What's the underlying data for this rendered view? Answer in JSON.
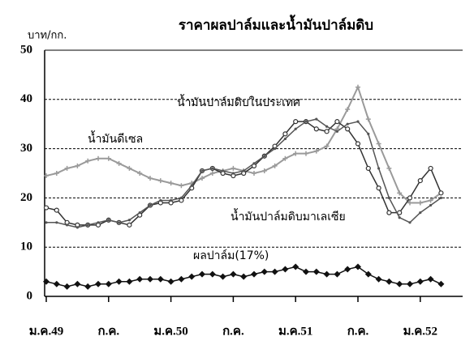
{
  "chart_data": {
    "type": "line",
    "title": "ราคาผลปาล์มและน้ำมันปาล์มดิบ",
    "y_label": "บาท/กก.",
    "categories": [
      "ม.ค.49",
      null,
      null,
      null,
      null,
      null,
      "ก.ค.",
      null,
      null,
      null,
      null,
      null,
      "ม.ค.50",
      null,
      null,
      null,
      null,
      null,
      "ก.ค.",
      null,
      null,
      null,
      null,
      null,
      "ม.ค.51",
      null,
      null,
      null,
      null,
      null,
      "ก.ค.",
      null,
      null,
      null,
      null,
      null,
      "ม.ค.52",
      null,
      null
    ],
    "ylim": [
      0,
      50
    ],
    "yticks": [
      0,
      10,
      20,
      30,
      40,
      50
    ],
    "grid": true,
    "series": [
      {
        "name": "น้ำมันดีเซล",
        "color": "#9a9a9a",
        "values": [
          24.5,
          25,
          26,
          26.5,
          27.5,
          28,
          28,
          27,
          26,
          25,
          24,
          23.5,
          23,
          22.5,
          23,
          24,
          25,
          25.5,
          26,
          25.5,
          25,
          25.5,
          26.5,
          28,
          29,
          29,
          29.5,
          30.5,
          34,
          38,
          42.5,
          36,
          31,
          26,
          21,
          19,
          19,
          19.5,
          21
        ]
      },
      {
        "name": "น้ำมันปาล์มดิบในประเทศ",
        "color": "#333333",
        "values": [
          18,
          17.5,
          15,
          14.5,
          14.5,
          14.5,
          15.5,
          15,
          14.5,
          16.5,
          18.5,
          19,
          19,
          19.5,
          22,
          25.5,
          26,
          25,
          24.5,
          25,
          26.5,
          28.5,
          30.5,
          33,
          35.5,
          35.5,
          34,
          33.5,
          35.5,
          34,
          31,
          26,
          22,
          17,
          17,
          20,
          23.5,
          26,
          21
        ]
      },
      {
        "name": "น้ำมันปาล์มดิบมาเลเซีย",
        "color": "#555555",
        "values": [
          15,
          15,
          14.5,
          14,
          14.5,
          15,
          15.5,
          15,
          15.5,
          17,
          18.5,
          19.5,
          19.5,
          20,
          22.5,
          25.5,
          26,
          25.5,
          25,
          25.5,
          27,
          28.5,
          30,
          32,
          34,
          35.5,
          36,
          34.5,
          33.5,
          35,
          35.5,
          33,
          26,
          20,
          16,
          15,
          17,
          18.5,
          20
        ]
      },
      {
        "name": "ผลปาล์ม(17%)",
        "color": "#111111",
        "values": [
          3,
          2.5,
          2,
          2.5,
          2,
          2.5,
          2.5,
          3,
          3,
          3.5,
          3.5,
          3.5,
          3,
          3.5,
          4,
          4.5,
          4.5,
          4,
          4.5,
          4,
          4.5,
          5,
          5,
          5.5,
          6,
          5,
          5,
          4.5,
          4.5,
          5.5,
          6,
          4.5,
          3.5,
          3,
          2.5,
          2.5,
          3,
          3.5,
          2.5
        ]
      }
    ]
  }
}
